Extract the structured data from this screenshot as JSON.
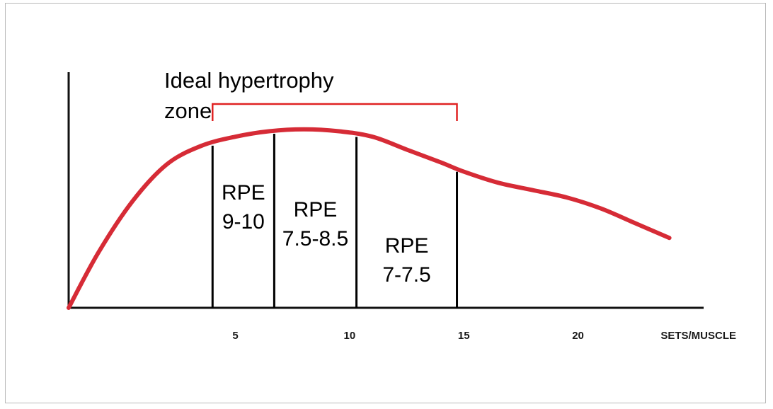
{
  "chart_data": {
    "type": "line",
    "xlabel": "SETS/MUSCLE",
    "ylabel": "",
    "xlim": [
      -2.3,
      25.5
    ],
    "ylim": [
      0,
      100
    ],
    "x_ticks": [
      5,
      10,
      15,
      20
    ],
    "grid": false,
    "series": [
      {
        "x": [
          -2.3,
          -1.0,
          0.5,
          2.0,
          3.5,
          5.0,
          6.5,
          8.0,
          9.5,
          11.0,
          12.5,
          14.0,
          15.0,
          16.5,
          18.0,
          19.5,
          21.0,
          22.5,
          24.0
        ],
        "values": [
          0,
          30,
          58,
          78,
          88,
          93,
          96,
          97,
          96,
          93,
          86,
          79,
          74,
          68,
          64,
          60,
          54,
          46,
          38
        ],
        "color": "#d62b36"
      }
    ],
    "rpe_zones": [
      {
        "x_start": 4.0,
        "x_end": 6.7,
        "line1": "RPE",
        "line2": "9-10"
      },
      {
        "x_start": 6.7,
        "x_end": 10.3,
        "line1": "RPE",
        "line2": "7.5-8.5"
      },
      {
        "x_start": 10.3,
        "x_end": 14.7,
        "line1": "RPE",
        "line2": "7-7.5"
      }
    ],
    "annotation": {
      "text_line1": "Ideal hypertrophy",
      "text_line2": "zone",
      "x_start": 4.0,
      "x_end": 14.7,
      "color": "#e02222"
    }
  }
}
